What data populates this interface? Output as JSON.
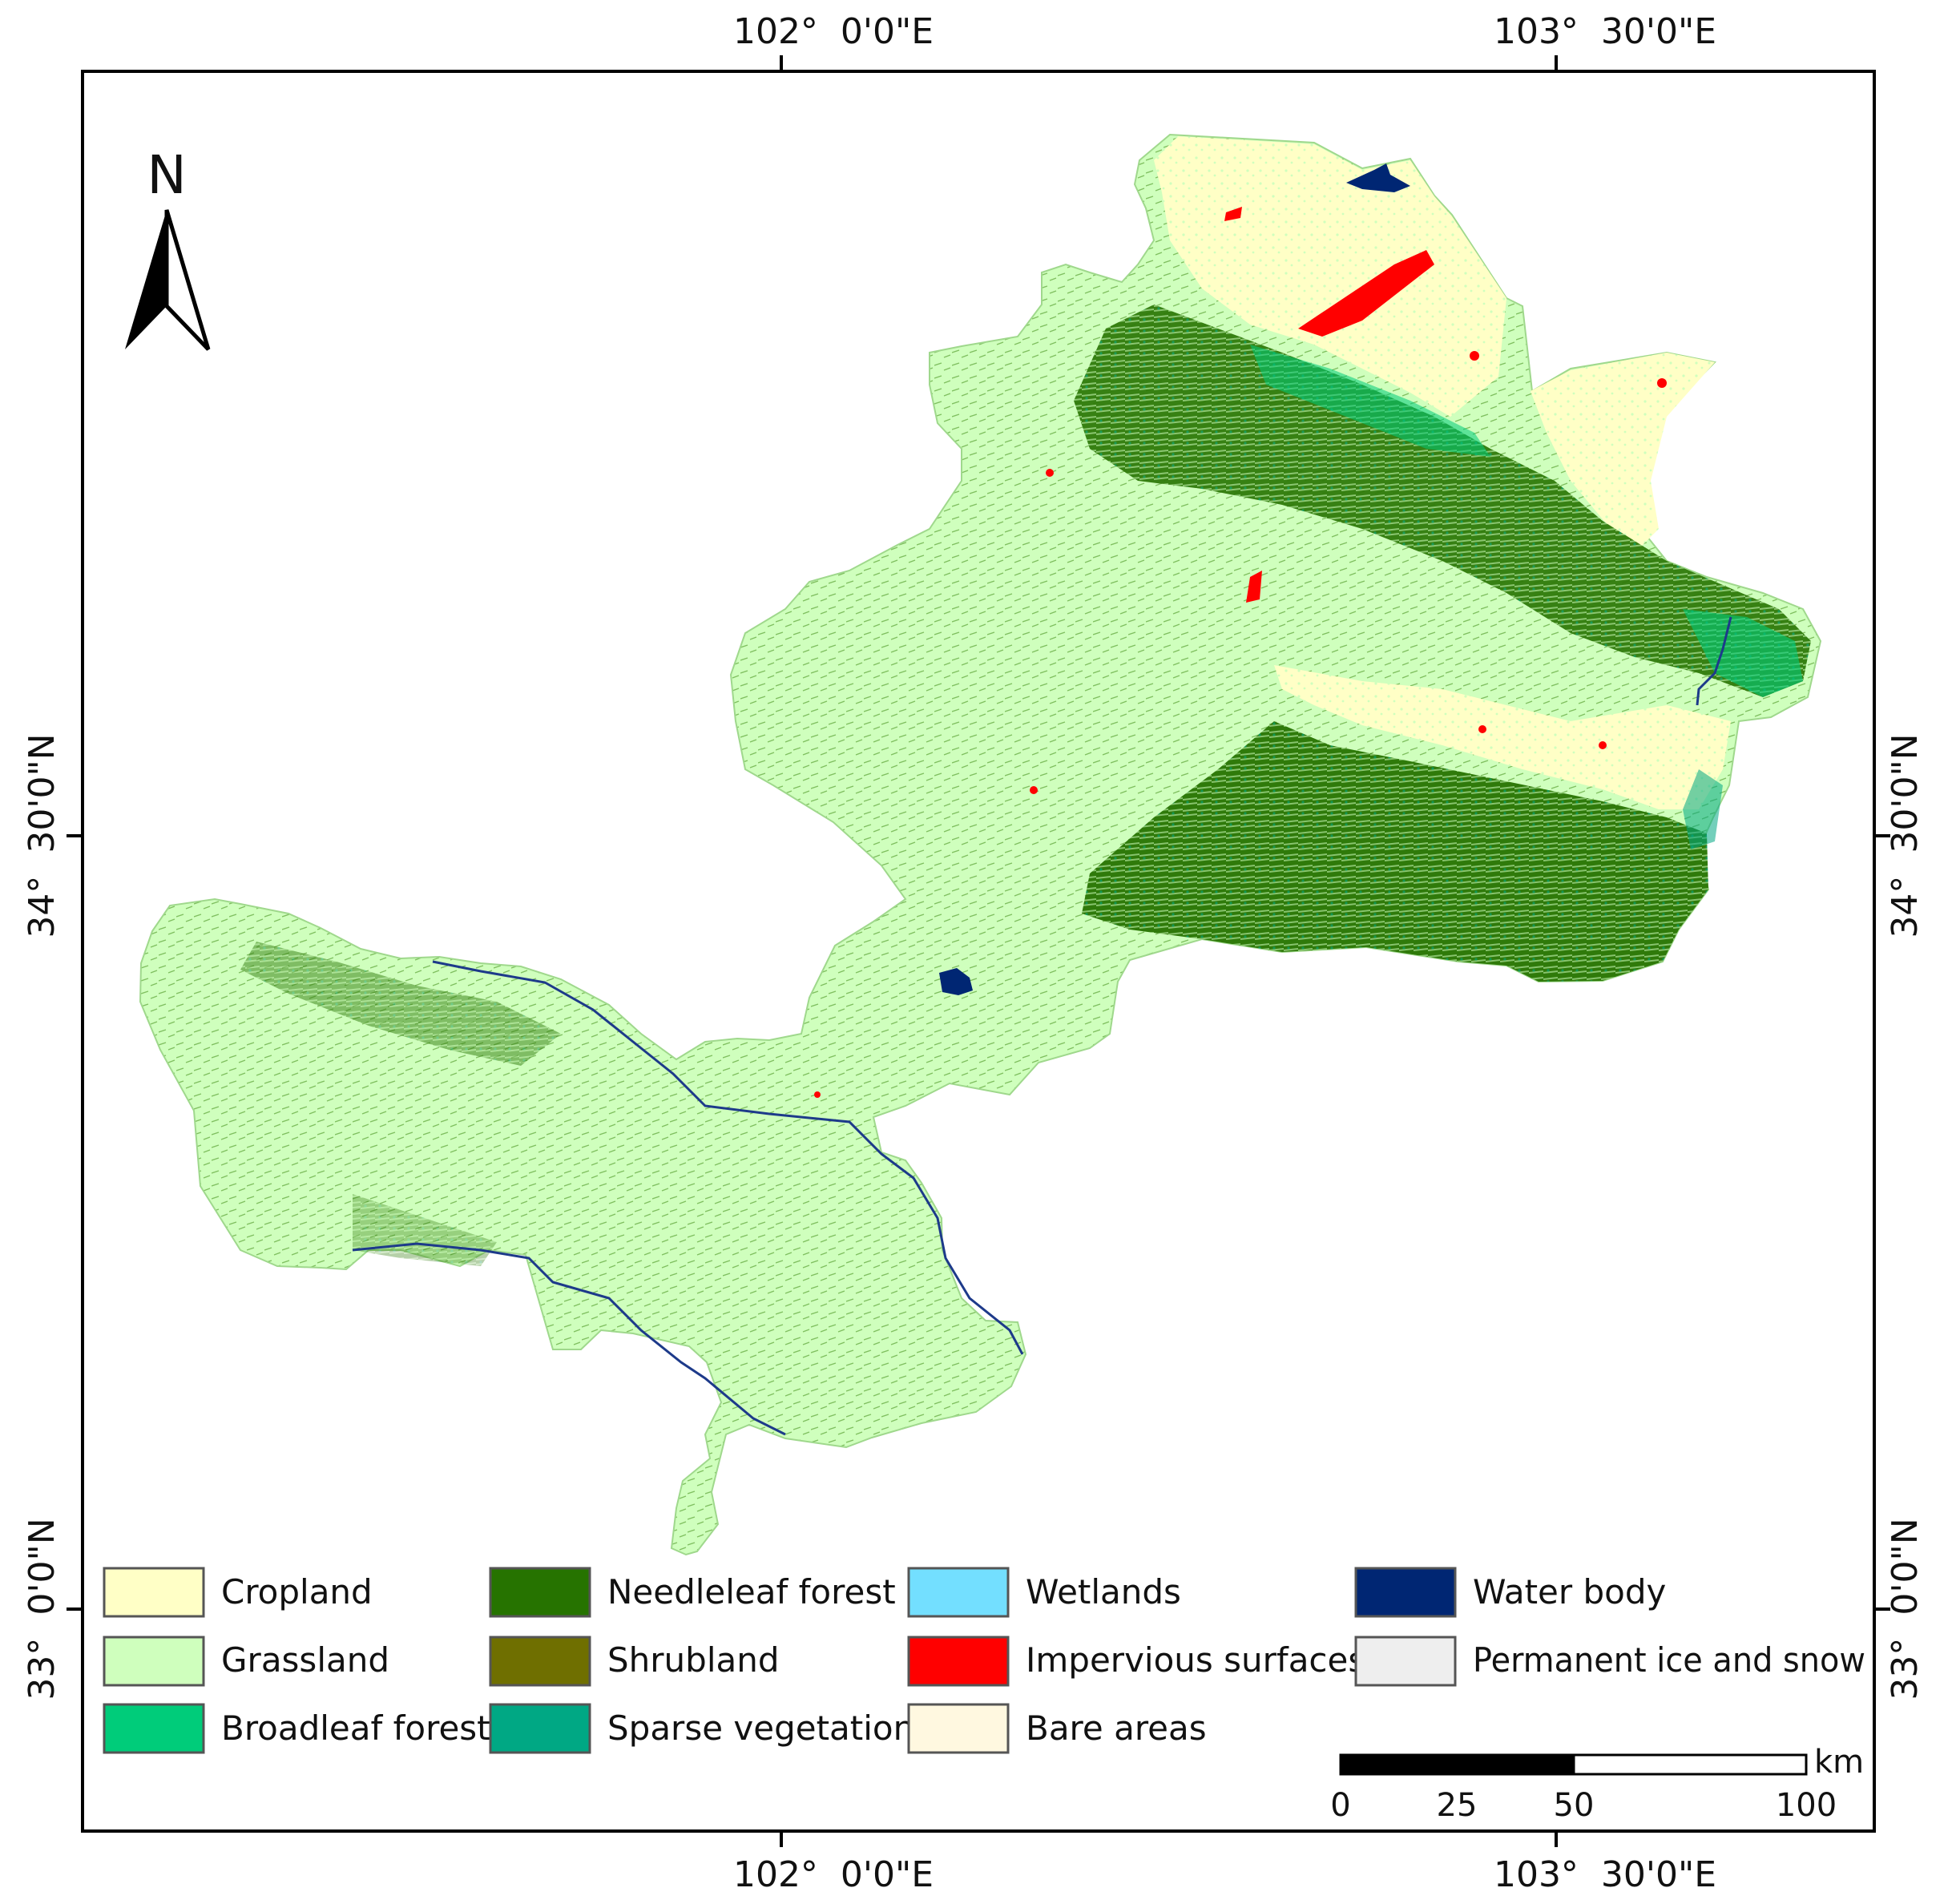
{
  "axes": {
    "top": [
      "102°  0'0\"E",
      "103°  30'0\"E"
    ],
    "bottom": [
      "102°  0'0\"E",
      "103°  30'0\"E"
    ],
    "left": [
      "34°  30'0\"N",
      "33°  0'0\"N"
    ],
    "right": [
      "34°  30'0\"N",
      "33°  0'0\"N"
    ]
  },
  "north_arrow": {
    "label": "N"
  },
  "legend": [
    {
      "label": "Cropland",
      "color": "#ffffc6"
    },
    {
      "label": "Grassland",
      "color": "#cfffbd"
    },
    {
      "label": "Broadleaf forest",
      "color": "#00cc7a"
    },
    {
      "label": "Needleleaf forest",
      "color": "#267300"
    },
    {
      "label": "Shrubland",
      "color": "#6f6f00"
    },
    {
      "label": "Sparse vegetation",
      "color": "#00a884"
    },
    {
      "label": "Wetlands",
      "color": "#73dfff"
    },
    {
      "label": "Impervious surfaces",
      "color": "#ff0000"
    },
    {
      "label": "Bare areas",
      "color": "#fff8e0"
    },
    {
      "label": "Water body",
      "color": "#002673"
    },
    {
      "label": "Permanent ice and snow",
      "color": "#eeeeee"
    }
  ],
  "scale_bar": {
    "unit": "km",
    "ticks": [
      "0",
      "25",
      "50",
      "100"
    ]
  }
}
